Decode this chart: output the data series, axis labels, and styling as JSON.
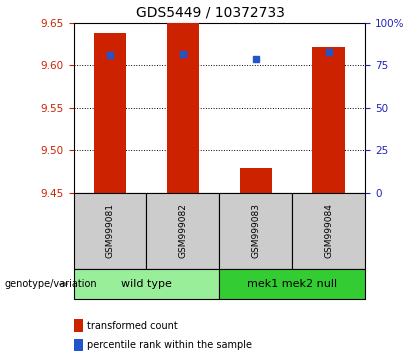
{
  "title": "GDS5449 / 10372733",
  "samples": [
    "GSM999081",
    "GSM999082",
    "GSM999083",
    "GSM999084"
  ],
  "bar_bottom": 9.45,
  "bar_values": [
    9.638,
    9.65,
    9.479,
    9.622
  ],
  "percentile_values": [
    81,
    82,
    79,
    83
  ],
  "ylim_left": [
    9.45,
    9.65
  ],
  "ylim_right": [
    0,
    100
  ],
  "yticks_left": [
    9.45,
    9.5,
    9.55,
    9.6,
    9.65
  ],
  "yticks_right": [
    0,
    25,
    50,
    75,
    100
  ],
  "ytick_right_labels": [
    "0",
    "25",
    "50",
    "75",
    "100%"
  ],
  "bar_color": "#cc2200",
  "percentile_color": "#2255cc",
  "groups": [
    {
      "label": "wild type",
      "indices": [
        0,
        1
      ],
      "color": "#99ee99"
    },
    {
      "label": "mek1 mek2 null",
      "indices": [
        2,
        3
      ],
      "color": "#33cc33"
    }
  ],
  "group_row_label": "genotype/variation",
  "legend_items": [
    {
      "color": "#cc2200",
      "label": "transformed count"
    },
    {
      "color": "#2255cc",
      "label": "percentile rank within the sample"
    }
  ],
  "bar_width": 0.45,
  "axis_color_left": "#cc2200",
  "axis_color_right": "#2222bb",
  "sample_box_color": "#cccccc",
  "title_fontsize": 10,
  "tick_fontsize": 7.5
}
